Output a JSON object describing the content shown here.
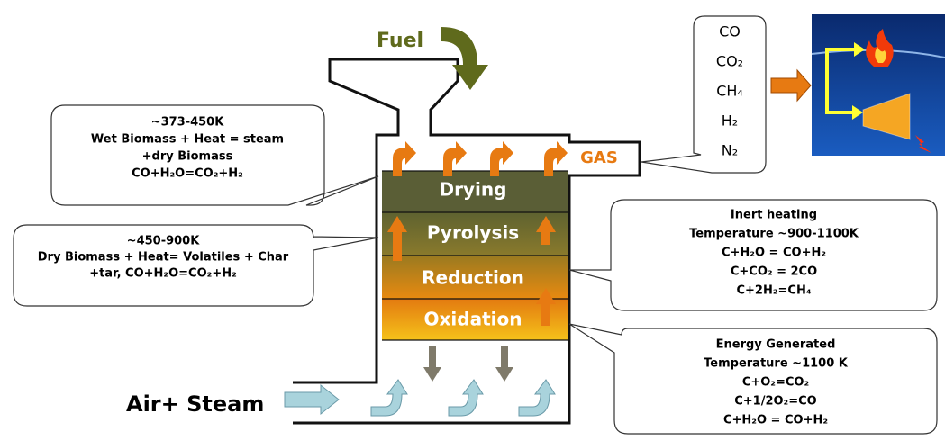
{
  "labels": {
    "fuel": "Fuel",
    "gas": "GAS",
    "air": "Air+ Steam"
  },
  "zones": [
    "Drying",
    "Pyrolysis",
    "Reduction",
    "Oxidation"
  ],
  "gas_composition": [
    "CO",
    "CO₂",
    "CH₄",
    "H₂",
    "N₂"
  ],
  "callouts": [
    {
      "lines": [
        "~373-450K",
        "Wet Biomass + Heat = steam",
        "+dry Biomass",
        "CO+H₂O=CO₂+H₂"
      ]
    },
    {
      "lines": [
        "~450-900K",
        "Dry Biomass + Heat= Volatiles + Char",
        "+tar, CO+H₂O=CO₂+H₂"
      ]
    },
    {
      "lines": [
        "Inert heating",
        "Temperature ~900-1100K",
        "C+H₂O = CO+H₂",
        "C+CO₂ = 2CO",
        "C+2H₂=CH₄"
      ]
    },
    {
      "lines": [
        "Energy Generated",
        "Temperature ~1100 K",
        "C+O₂=CO₂",
        "C+1/2O₂=CO",
        "C+H₂O = CO+H₂"
      ]
    }
  ]
}
